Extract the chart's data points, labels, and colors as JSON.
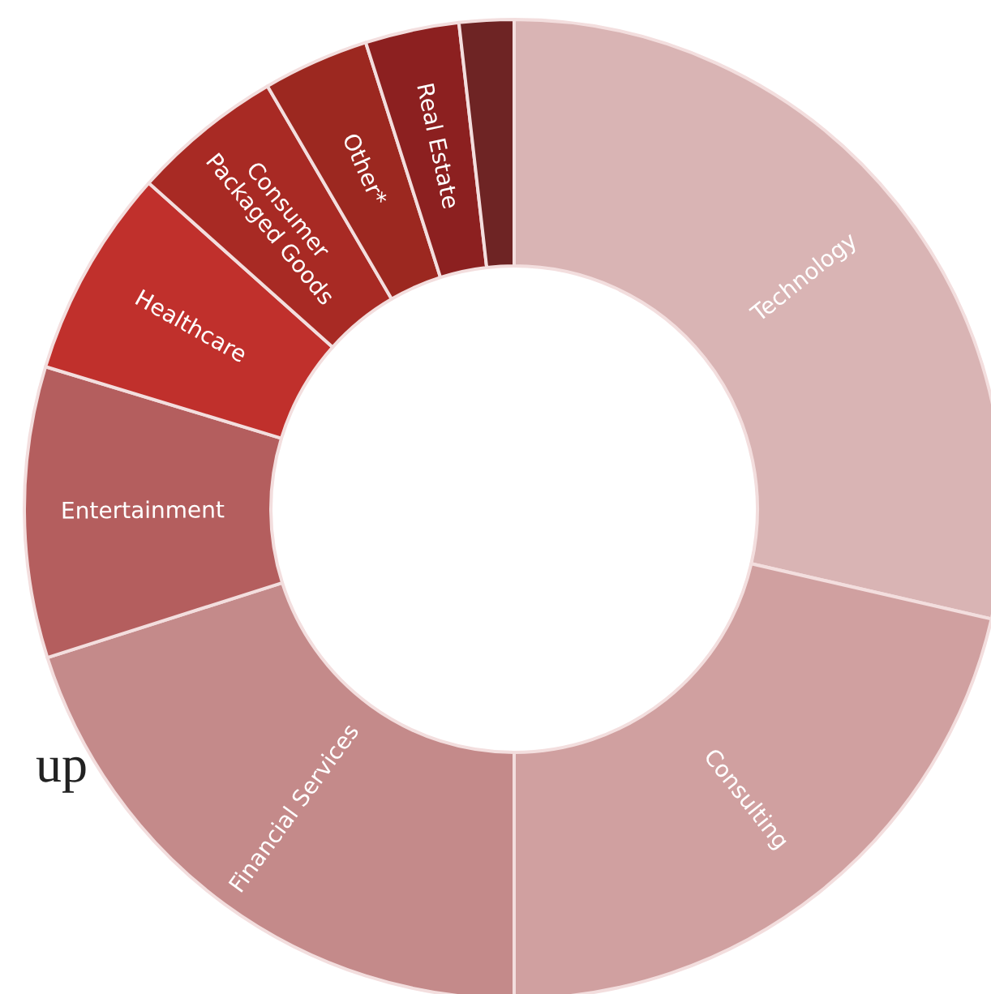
{
  "chart_data": {
    "type": "donut",
    "categories": [
      "Technology",
      "Consulting",
      "Financial Services",
      "Entertainment",
      "Healthcare",
      "Consumer Packaged Goods",
      "Other*",
      "Real Estate",
      null
    ],
    "values": [
      28.6,
      21.4,
      20.1,
      9.6,
      6.9,
      5.0,
      3.5,
      3.1,
      1.8
    ],
    "colors": [
      "#d9b4b4",
      "#d0a0a0",
      "#c48a8a",
      "#b45e5e",
      "#c0302c",
      "#a82a24",
      "#9c2820",
      "#8c2020",
      "#6e2424"
    ],
    "annotations": [
      "up"
    ]
  }
}
